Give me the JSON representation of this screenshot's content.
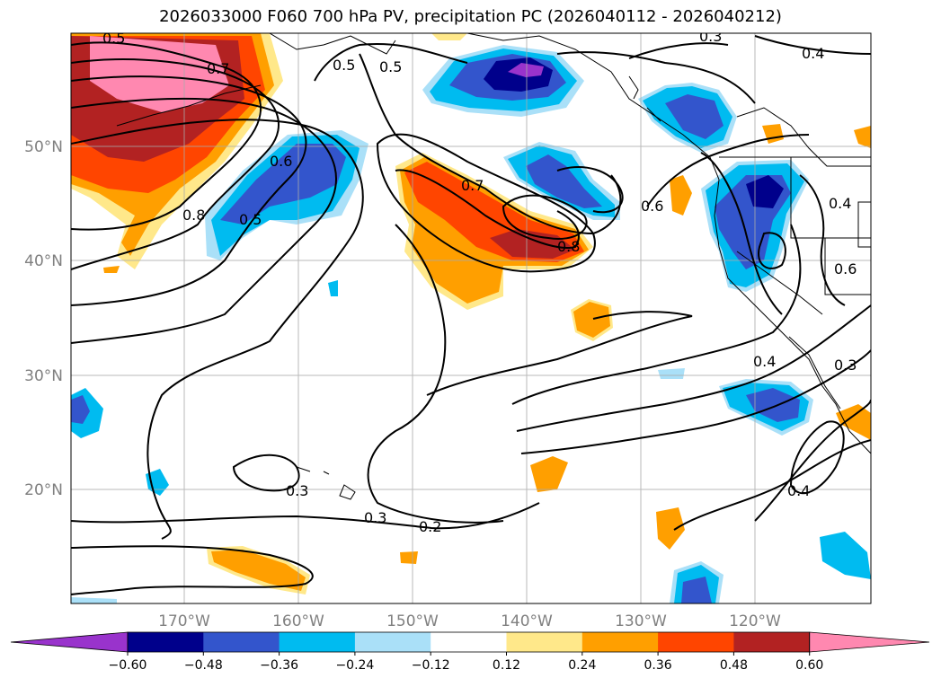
{
  "title": "2026033000 F060 700 hPa PV, precipitation PC (2026040112 - 2026040212)",
  "lat_labels": [
    "50°N",
    "40°N",
    "30°N",
    "20°N"
  ],
  "lon_labels": [
    "170°W",
    "160°W",
    "150°W",
    "140°W",
    "130°W",
    "120°W"
  ],
  "contour_labels": [
    "0.5",
    "0.7",
    "0.5",
    "0.5",
    "0.3",
    "0.4",
    "0.6",
    "0.8",
    "0.5",
    "0.7",
    "0.8",
    "0.6",
    "0.4",
    "0.6",
    "0.4",
    "0.3",
    "0.3",
    "0.3",
    "0.2",
    "0.4"
  ],
  "colorbar": {
    "colors": [
      "#9933cc",
      "#00008b",
      "#3355cc",
      "#00bbf0",
      "#aae0f8",
      "#ffffff",
      "#ffe88a",
      "#ff9f00",
      "#ff4500",
      "#b22222",
      "#ff88b0"
    ],
    "labels": [
      "−0.60",
      "−0.48",
      "−0.36",
      "−0.24",
      "−0.12",
      "0.12",
      "0.24",
      "0.36",
      "0.48",
      "0.60"
    ]
  }
}
